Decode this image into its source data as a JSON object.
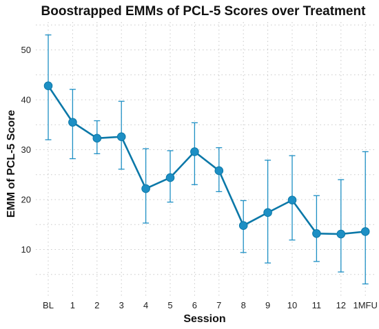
{
  "colors": {
    "series": "#0b78a8",
    "error": "#1d8fc4"
  },
  "chart_data": {
    "type": "line",
    "title": "Boostrapped EMMs of PCL-5 Scores over Treatment",
    "xlabel": "Session",
    "ylabel": "EMM of PCL-5 Score",
    "categories": [
      "BL",
      "1",
      "2",
      "3",
      "4",
      "5",
      "6",
      "7",
      "8",
      "9",
      "10",
      "11",
      "12",
      "1MFU"
    ],
    "values": [
      42.8,
      35.5,
      32.3,
      32.6,
      22.2,
      24.4,
      29.6,
      25.8,
      14.8,
      17.4,
      19.9,
      13.2,
      13.1,
      13.6
    ],
    "error_low": [
      32.0,
      28.2,
      29.2,
      26.1,
      15.3,
      19.5,
      23.0,
      21.6,
      9.4,
      7.3,
      11.9,
      7.6,
      5.5,
      3.1
    ],
    "error_high": [
      53.0,
      42.1,
      35.8,
      39.7,
      30.2,
      29.8,
      35.4,
      30.4,
      19.8,
      27.9,
      28.8,
      20.8,
      24.0,
      29.6
    ],
    "yticks": [
      10,
      20,
      30,
      40,
      50
    ],
    "ylim": [
      1,
      56
    ],
    "grid": true
  }
}
